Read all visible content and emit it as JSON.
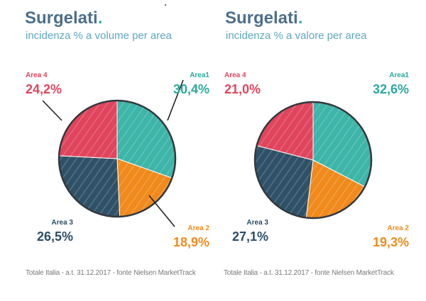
{
  "colors": {
    "area1": "#3db5a8",
    "area2": "#f08a1c",
    "area3": "#2f5168",
    "area4": "#e0455d",
    "area1_text": "#2aa99c",
    "area2_text": "#f08a1c",
    "area3_text": "#2c4e66",
    "area4_text": "#e0455d"
  },
  "panels": [
    {
      "title_main": "Surgelati",
      "title_dot": ".",
      "subtitle": "incidenza % a volume per area",
      "footer": "Totale Italia - a.t. 31.12.2017 - fonte Nielsen MarketTrack"
    },
    {
      "title_main": "Surgelati",
      "title_dot": ".",
      "subtitle": "incidenza % a valore per area",
      "footer": "Totale Italia - a.t. 31.12.2017 - fonte Nielsen MarketTrack"
    }
  ],
  "chart_data": [
    {
      "type": "pie",
      "title": "Surgelati.",
      "subtitle": "incidenza % a volume per area",
      "slices": [
        {
          "label": "Area1",
          "value": 30.4,
          "display": "30,4%",
          "color_key": "area1"
        },
        {
          "label": "Area 2",
          "value": 18.9,
          "display": "18,9%",
          "color_key": "area2"
        },
        {
          "label": "Area 3",
          "value": 26.5,
          "display": "26,5%",
          "color_key": "area3"
        },
        {
          "label": "Area 4",
          "value": 24.2,
          "display": "24,2%",
          "color_key": "area4"
        }
      ]
    },
    {
      "type": "pie",
      "title": "Surgelati.",
      "subtitle": "incidenza % a valore per area",
      "slices": [
        {
          "label": "Area1",
          "value": 32.6,
          "display": "32,6%",
          "color_key": "area1"
        },
        {
          "label": "Area 2",
          "value": 19.3,
          "display": "19,3%",
          "color_key": "area2"
        },
        {
          "label": "Area 3",
          "value": 27.1,
          "display": "27,1%",
          "color_key": "area3"
        },
        {
          "label": "Area 4",
          "value": 21.0,
          "display": "21,0%",
          "color_key": "area4"
        }
      ]
    }
  ]
}
